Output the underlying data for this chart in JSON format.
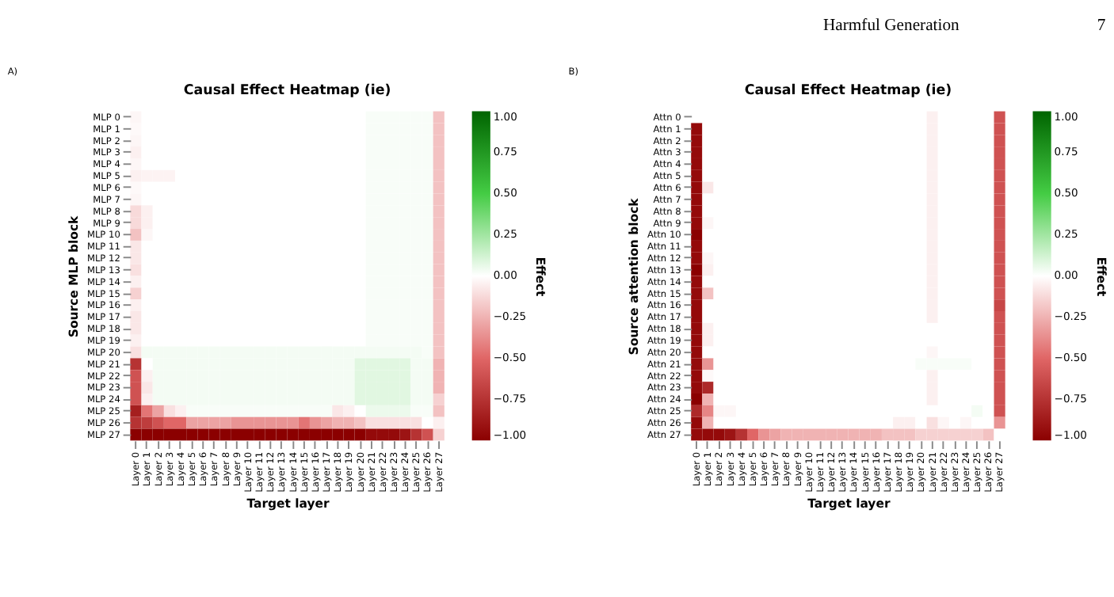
{
  "chart_data": [
    {
      "type": "heatmap",
      "title": "Causal Effect Heatmap (ie)",
      "xlabel": "Target layer",
      "ylabel": "Source MLP block",
      "clabel": "Effect",
      "annotations": [
        "A)"
      ],
      "cticks": [
        {
          "value": -1,
          "label": "−1.00"
        },
        {
          "value": -0.75,
          "label": "−0.75"
        },
        {
          "value": -0.5,
          "label": "−0.50"
        },
        {
          "value": -0.25,
          "label": "−0.25"
        },
        {
          "value": 0,
          "label": "0.00"
        },
        {
          "value": 0.25,
          "label": "0.25"
        },
        {
          "value": 0.5,
          "label": "0.50"
        },
        {
          "value": 0.75,
          "label": "0.75"
        },
        {
          "value": 1,
          "label": "1.00"
        }
      ],
      "categories": [
        "Layer 0",
        "Layer 1",
        "Layer 2",
        "Layer 3",
        "Layer 4",
        "Layer 5",
        "Layer 6",
        "Layer 7",
        "Layer 8",
        "Layer 9",
        "Layer 10",
        "Layer 11",
        "Layer 12",
        "Layer 13",
        "Layer 14",
        "Layer 15",
        "Layer 16",
        "Layer 17",
        "Layer 18",
        "Layer 19",
        "Layer 20",
        "Layer 21",
        "Layer 22",
        "Layer 23",
        "Layer 24",
        "Layer 25",
        "Layer 26",
        "Layer 27"
      ],
      "y_categories": [
        "MLP 0",
        "MLP 1",
        "MLP 2",
        "MLP 3",
        "MLP 4",
        "MLP 5",
        "MLP 6",
        "MLP 7",
        "MLP 8",
        "MLP 9",
        "MLP 10",
        "MLP 11",
        "MLP 12",
        "MLP 13",
        "MLP 14",
        "MLP 15",
        "MLP 16",
        "MLP 17",
        "MLP 18",
        "MLP 19",
        "MLP 20",
        "MLP 21",
        "MLP 22",
        "MLP 23",
        "MLP 24",
        "MLP 25",
        "MLP 26",
        "MLP 27"
      ],
      "clim": [
        -1,
        1
      ],
      "cells": [
        [
          -0.03,
          0,
          0,
          0,
          0,
          0,
          0,
          0,
          0,
          0,
          0,
          0,
          0,
          0,
          0,
          0,
          0,
          0,
          0,
          0,
          0,
          0.02,
          0.02,
          0.02,
          0.02,
          0.02,
          0.02,
          -0.2
        ],
        [
          -0.02,
          0,
          0,
          0,
          0,
          0,
          0,
          0,
          0,
          0,
          0,
          0,
          0,
          0,
          0,
          0,
          0,
          0,
          0,
          0,
          0,
          0.02,
          0.02,
          0.02,
          0.02,
          0.02,
          0.02,
          -0.2
        ],
        [
          -0.03,
          0,
          0,
          0,
          0,
          0,
          0,
          0,
          0,
          0,
          0,
          0,
          0,
          0,
          0,
          0,
          0,
          0,
          0,
          0,
          0,
          0.02,
          0.02,
          0.02,
          0.02,
          0.02,
          0.02,
          -0.2
        ],
        [
          -0.05,
          0,
          0,
          0,
          0,
          0,
          0,
          0,
          0,
          0,
          0,
          0,
          0,
          0,
          0,
          0,
          0,
          0,
          0,
          0,
          0,
          0.02,
          0.02,
          0.02,
          0.02,
          0.02,
          0.02,
          -0.2
        ],
        [
          -0.03,
          0,
          0,
          0,
          0,
          0,
          0,
          0,
          0,
          0,
          0,
          0,
          0,
          0,
          0,
          0,
          0,
          0,
          0,
          0,
          0,
          0.02,
          0.02,
          0.02,
          0.02,
          0.02,
          0.02,
          -0.2
        ],
        [
          -0.05,
          -0.04,
          -0.04,
          -0.04,
          0,
          0,
          0,
          0,
          0,
          0,
          0,
          0,
          0,
          0,
          0,
          0,
          0,
          0,
          0,
          0,
          0,
          0.02,
          0.02,
          0.02,
          0.02,
          0.02,
          0.02,
          -0.2
        ],
        [
          -0.02,
          0,
          0,
          0,
          0,
          0,
          0,
          0,
          0,
          0,
          0,
          0,
          0,
          0,
          0,
          0,
          0,
          0,
          0,
          0,
          0,
          0.02,
          0.02,
          0.02,
          0.02,
          0.02,
          0.02,
          -0.2
        ],
        [
          -0.03,
          0,
          0,
          0,
          0,
          0,
          0,
          0,
          0,
          0,
          0,
          0,
          0,
          0,
          0,
          0,
          0,
          0,
          0,
          0,
          0,
          0.02,
          0.02,
          0.02,
          0.02,
          0.02,
          0.02,
          -0.2
        ],
        [
          -0.12,
          -0.05,
          0,
          0,
          0,
          0,
          0,
          0,
          0,
          0,
          0,
          0,
          0,
          0,
          0,
          0,
          0,
          0,
          0,
          0,
          0,
          0.02,
          0.02,
          0.02,
          0.02,
          0.02,
          0.02,
          -0.2
        ],
        [
          -0.12,
          -0.05,
          0,
          0,
          0,
          0,
          0,
          0,
          0,
          0,
          0,
          0,
          0,
          0,
          0,
          0,
          0,
          0,
          0,
          0,
          0,
          0.02,
          0.02,
          0.02,
          0.02,
          0.02,
          0.02,
          -0.2
        ],
        [
          -0.2,
          -0.03,
          0,
          0,
          0,
          0,
          0,
          0,
          0,
          0,
          0,
          0,
          0,
          0,
          0,
          0,
          0,
          0,
          0,
          0,
          0,
          0.02,
          0.02,
          0.02,
          0.02,
          0.02,
          0.02,
          -0.2
        ],
        [
          -0.08,
          0,
          0,
          0,
          0,
          0,
          0,
          0,
          0,
          0,
          0,
          0,
          0,
          0,
          0,
          0,
          0,
          0,
          0,
          0,
          0,
          0.02,
          0.02,
          0.02,
          0.02,
          0.02,
          0.02,
          -0.2
        ],
        [
          -0.08,
          0,
          0,
          0,
          0,
          0,
          0,
          0,
          0,
          0,
          0,
          0,
          0,
          0,
          0,
          0,
          0,
          0,
          0,
          0,
          0,
          0.02,
          0.02,
          0.02,
          0.02,
          0.02,
          0.02,
          -0.2
        ],
        [
          -0.1,
          0,
          0,
          0,
          0,
          0,
          0,
          0,
          0,
          0,
          0,
          0,
          0,
          0,
          0,
          0,
          0,
          0,
          0,
          0,
          0,
          0.02,
          0.02,
          0.02,
          0.02,
          0.02,
          0.02,
          -0.2
        ],
        [
          -0.05,
          0,
          0,
          0,
          0,
          0,
          0,
          0,
          0,
          0,
          0,
          0,
          0,
          0,
          0,
          0,
          0,
          0,
          0,
          0,
          0,
          0.02,
          0.02,
          0.02,
          0.02,
          0.02,
          0.02,
          -0.2
        ],
        [
          -0.15,
          0,
          0,
          0,
          0,
          0,
          0,
          0,
          0,
          0,
          0,
          0,
          0,
          0,
          0,
          0,
          0,
          0,
          0,
          0,
          0,
          0.02,
          0.02,
          0.02,
          0.02,
          0.02,
          0.02,
          -0.2
        ],
        [
          -0.05,
          0,
          0,
          0,
          0,
          0,
          0,
          0,
          0,
          0,
          0,
          0,
          0,
          0,
          0,
          0,
          0,
          0,
          0,
          0,
          0,
          0.02,
          0.02,
          0.02,
          0.02,
          0.02,
          0.02,
          -0.2
        ],
        [
          -0.08,
          0,
          0,
          0,
          0,
          0,
          0,
          0,
          0,
          0,
          0,
          0,
          0,
          0,
          0,
          0,
          0,
          0,
          0,
          0,
          0,
          0.02,
          0.02,
          0.02,
          0.02,
          0.02,
          0.02,
          -0.2
        ],
        [
          -0.08,
          0,
          0,
          0,
          0,
          0,
          0,
          0,
          0,
          0,
          0,
          0,
          0,
          0,
          0,
          0,
          0,
          0,
          0,
          0,
          0,
          0.02,
          0.02,
          0.02,
          0.02,
          0.02,
          0.02,
          -0.2
        ],
        [
          -0.05,
          0,
          0,
          0,
          0,
          0,
          0,
          0,
          0,
          0,
          0,
          0,
          0,
          0,
          0,
          0,
          0,
          0,
          0,
          0,
          0,
          0.02,
          0.02,
          0.02,
          0.02,
          0.02,
          0.02,
          -0.2
        ],
        [
          -0.1,
          0.03,
          0.03,
          0.03,
          0.03,
          0.03,
          0.03,
          0.03,
          0.03,
          0.03,
          0.03,
          0.03,
          0.03,
          0.03,
          0.03,
          0.03,
          0.03,
          0.03,
          0.03,
          0.03,
          0.03,
          0.03,
          0.03,
          0.03,
          0.03,
          0.03,
          0.02,
          -0.2
        ],
        [
          -0.75,
          0,
          0.03,
          0.03,
          0.03,
          0.03,
          0.03,
          0.03,
          0.03,
          0.03,
          0.03,
          0.03,
          0.03,
          0.03,
          0.03,
          0.03,
          0.03,
          0.03,
          0.03,
          0.03,
          0.08,
          0.08,
          0.08,
          0.08,
          0.08,
          0.03,
          0.03,
          -0.25
        ],
        [
          -0.6,
          -0.05,
          0.03,
          0.03,
          0.03,
          0.03,
          0.03,
          0.03,
          0.03,
          0.03,
          0.03,
          0.03,
          0.03,
          0.03,
          0.03,
          0.03,
          0.03,
          0.03,
          0.03,
          0.03,
          0.08,
          0.08,
          0.08,
          0.08,
          0.08,
          0.03,
          0.03,
          -0.25
        ],
        [
          -0.6,
          -0.08,
          0.03,
          0.03,
          0.03,
          0.03,
          0.03,
          0.03,
          0.03,
          0.03,
          0.03,
          0.03,
          0.03,
          0.03,
          0.03,
          0.03,
          0.03,
          0.03,
          0.03,
          0.03,
          0.08,
          0.08,
          0.08,
          0.08,
          0.08,
          0.03,
          0.03,
          -0.25
        ],
        [
          -0.6,
          -0.05,
          0.03,
          0.03,
          0.03,
          0.03,
          0.03,
          0.03,
          0.03,
          0.03,
          0.03,
          0.03,
          0.03,
          0.03,
          0.03,
          0.03,
          0.03,
          0.03,
          0.03,
          0.03,
          0.08,
          0.08,
          0.08,
          0.08,
          0.08,
          0.03,
          0.03,
          -0.15
        ],
        [
          -0.85,
          -0.45,
          -0.3,
          -0.1,
          -0.05,
          0.02,
          0.02,
          0.02,
          0.02,
          0.02,
          0.02,
          0.02,
          0.02,
          0.02,
          0.02,
          0.02,
          0.02,
          0.02,
          -0.08,
          -0.05,
          0,
          0.05,
          0.05,
          0.05,
          0.05,
          0.02,
          0.02,
          -0.2
        ],
        [
          -0.75,
          -0.7,
          -0.6,
          -0.5,
          -0.5,
          -0.3,
          -0.3,
          -0.3,
          -0.3,
          -0.35,
          -0.35,
          -0.35,
          -0.35,
          -0.35,
          -0.35,
          -0.45,
          -0.35,
          -0.3,
          -0.25,
          -0.25,
          -0.2,
          -0.1,
          -0.1,
          -0.1,
          -0.1,
          -0.1,
          0,
          -0.05
        ],
        [
          -1,
          -1,
          -1,
          -1,
          -1,
          -1,
          -1,
          -1,
          -1,
          -1,
          -1,
          -1,
          -1,
          -1,
          -1,
          -1,
          -1,
          -1,
          -1,
          -1,
          -1,
          -0.95,
          -0.95,
          -0.95,
          -0.9,
          -0.75,
          -0.6,
          -0.15
        ]
      ]
    },
    {
      "type": "heatmap",
      "title": "Causal Effect Heatmap (ie)",
      "xlabel": "Target layer",
      "ylabel": "Source attention block",
      "clabel": "Effect",
      "annotations": [
        "B)",
        "Harmful Generation",
        "7"
      ],
      "cticks": [
        {
          "value": -1,
          "label": "−1.00"
        },
        {
          "value": -0.75,
          "label": "−0.75"
        },
        {
          "value": -0.5,
          "label": "−0.50"
        },
        {
          "value": -0.25,
          "label": "−0.25"
        },
        {
          "value": 0,
          "label": "0.00"
        },
        {
          "value": 0.25,
          "label": "0.25"
        },
        {
          "value": 0.5,
          "label": "0.50"
        },
        {
          "value": 0.75,
          "label": "0.75"
        },
        {
          "value": 1,
          "label": "1.00"
        }
      ],
      "categories": [
        "Layer 0",
        "Layer 1",
        "Layer 2",
        "Layer 3",
        "Layer 4",
        "Layer 5",
        "Layer 6",
        "Layer 7",
        "Layer 8",
        "Layer 9",
        "Layer 10",
        "Layer 11",
        "Layer 12",
        "Layer 13",
        "Layer 14",
        "Layer 15",
        "Layer 16",
        "Layer 17",
        "Layer 18",
        "Layer 19",
        "Layer 20",
        "Layer 21",
        "Layer 22",
        "Layer 23",
        "Layer 24",
        "Layer 25",
        "Layer 26",
        "Layer 27"
      ],
      "y_categories": [
        "Attn 0",
        "Attn 1",
        "Attn 2",
        "Attn 3",
        "Attn 4",
        "Attn 5",
        "Attn 6",
        "Attn 7",
        "Attn 8",
        "Attn 9",
        "Attn 10",
        "Attn 11",
        "Attn 12",
        "Attn 13",
        "Attn 14",
        "Attn 15",
        "Attn 16",
        "Attn 17",
        "Attn 18",
        "Attn 19",
        "Attn 20",
        "Attn 21",
        "Attn 22",
        "Attn 23",
        "Attn 24",
        "Attn 25",
        "Attn 26",
        "Attn 27"
      ],
      "clim": [
        -1,
        1
      ],
      "cells": [
        [
          0,
          0,
          0,
          0,
          0,
          0,
          0,
          0,
          0,
          0,
          0,
          0,
          0,
          0,
          0,
          0,
          0,
          0,
          0,
          0,
          0,
          -0.05,
          0,
          0,
          0,
          0,
          0,
          -0.6
        ],
        [
          -0.95,
          0,
          0,
          0,
          0,
          0,
          0,
          0,
          0,
          0,
          0,
          0,
          0,
          0,
          0,
          0,
          0,
          0,
          0,
          0,
          0,
          -0.05,
          0,
          0,
          0,
          0,
          0,
          -0.6
        ],
        [
          -0.95,
          0,
          0,
          0,
          0,
          0,
          0,
          0,
          0,
          0,
          0,
          0,
          0,
          0,
          0,
          0,
          0,
          0,
          0,
          0,
          0,
          -0.05,
          0,
          0,
          0,
          0,
          0,
          -0.6
        ],
        [
          -0.95,
          0,
          0,
          0,
          0,
          0,
          0,
          0,
          0,
          0,
          0,
          0,
          0,
          0,
          0,
          0,
          0,
          0,
          0,
          0,
          0,
          -0.05,
          0,
          0,
          0,
          0,
          0,
          -0.6
        ],
        [
          -0.95,
          0,
          0,
          0,
          0,
          0,
          0,
          0,
          0,
          0,
          0,
          0,
          0,
          0,
          0,
          0,
          0,
          0,
          0,
          0,
          0,
          -0.05,
          0,
          0,
          0,
          0,
          0,
          -0.6
        ],
        [
          -0.95,
          0,
          0,
          0,
          0,
          0,
          0,
          0,
          0,
          0,
          0,
          0,
          0,
          0,
          0,
          0,
          0,
          0,
          0,
          0,
          0,
          -0.05,
          0,
          0,
          0,
          0,
          0,
          -0.6
        ],
        [
          -0.95,
          -0.08,
          0,
          0,
          0,
          0,
          0,
          0,
          0,
          0,
          0,
          0,
          0,
          0,
          0,
          0,
          0,
          0,
          0,
          0,
          0,
          -0.05,
          0,
          0,
          0,
          0,
          0,
          -0.6
        ],
        [
          -0.95,
          0,
          0,
          0,
          0,
          0,
          0,
          0,
          0,
          0,
          0,
          0,
          0,
          0,
          0,
          0,
          0,
          0,
          0,
          0,
          0,
          -0.05,
          0,
          0,
          0,
          0,
          0,
          -0.6
        ],
        [
          -0.95,
          0,
          0,
          0,
          0,
          0,
          0,
          0,
          0,
          0,
          0,
          0,
          0,
          0,
          0,
          0,
          0,
          0,
          0,
          0,
          0,
          -0.05,
          0,
          0,
          0,
          0,
          0,
          -0.6
        ],
        [
          -0.95,
          -0.03,
          0,
          0,
          0,
          0,
          0,
          0,
          0,
          0,
          0,
          0,
          0,
          0,
          0,
          0,
          0,
          0,
          0,
          0,
          0,
          -0.05,
          0,
          0,
          0,
          0,
          0,
          -0.6
        ],
        [
          -1,
          0,
          0,
          0,
          0,
          0,
          0,
          0,
          0,
          0,
          0,
          0,
          0,
          0,
          0,
          0,
          0,
          0,
          0,
          0,
          0,
          -0.05,
          0,
          0,
          0,
          0,
          0,
          -0.6
        ],
        [
          -0.95,
          0,
          0,
          0,
          0,
          0,
          0,
          0,
          0,
          0,
          0,
          0,
          0,
          0,
          0,
          0,
          0,
          0,
          0,
          0,
          0,
          -0.05,
          0,
          0,
          0,
          0,
          0,
          -0.6
        ],
        [
          -0.95,
          -0.03,
          0,
          0,
          0,
          0,
          0,
          0,
          0,
          0,
          0,
          0,
          0,
          0,
          0,
          0,
          0,
          0,
          0,
          0,
          0,
          -0.05,
          0,
          0,
          0,
          0,
          0,
          -0.6
        ],
        [
          -1,
          -0.05,
          0,
          0,
          0,
          0,
          0,
          0,
          0,
          0,
          0,
          0,
          0,
          0,
          0,
          0,
          0,
          0,
          0,
          0,
          0,
          -0.05,
          0,
          0,
          0,
          0,
          0,
          -0.6
        ],
        [
          -0.95,
          0,
          0,
          0,
          0,
          0,
          0,
          0,
          0,
          0,
          0,
          0,
          0,
          0,
          0,
          0,
          0,
          0,
          0,
          0,
          0,
          -0.05,
          0,
          0,
          0,
          0,
          0,
          -0.6
        ],
        [
          -0.95,
          -0.2,
          0,
          0,
          0,
          0,
          0,
          0,
          0,
          0,
          0,
          0,
          0,
          0,
          0,
          0,
          0,
          0,
          0,
          0,
          0,
          -0.05,
          0,
          0,
          0,
          0,
          0,
          -0.6
        ],
        [
          -0.95,
          0,
          0,
          0,
          0,
          0,
          0,
          0,
          0,
          0,
          0,
          0,
          0,
          0,
          0,
          0,
          0,
          0,
          0,
          0,
          0,
          -0.05,
          0,
          0,
          0,
          0,
          0,
          -0.65
        ],
        [
          -0.95,
          0,
          0,
          0,
          0,
          0,
          0,
          0,
          0,
          0,
          0,
          0,
          0,
          0,
          0,
          0,
          0,
          0,
          0,
          0,
          0,
          -0.05,
          0,
          0,
          0,
          0,
          0,
          -0.6
        ],
        [
          -0.95,
          -0.05,
          0,
          0,
          0,
          0,
          0,
          0,
          0,
          0,
          0,
          0,
          0,
          0,
          0,
          0,
          0,
          0,
          0,
          0,
          0,
          0,
          0,
          0,
          0,
          0,
          0,
          -0.6
        ],
        [
          -0.95,
          -0.05,
          0,
          0,
          0,
          0,
          0,
          0,
          0,
          0,
          0,
          0,
          0,
          0,
          0,
          0,
          0,
          0,
          0,
          0,
          0,
          0,
          0,
          0,
          0,
          0,
          0,
          -0.6
        ],
        [
          -0.95,
          0,
          0,
          0,
          0,
          0,
          0,
          0,
          0,
          0,
          0,
          0,
          0,
          0,
          0,
          0,
          0,
          0,
          0,
          0,
          0,
          -0.03,
          0,
          0,
          0,
          0,
          0,
          -0.6
        ],
        [
          -0.95,
          -0.35,
          0,
          0,
          0,
          0,
          0,
          0,
          0,
          0,
          0,
          0,
          0,
          0,
          0,
          0,
          0,
          0,
          0,
          0,
          0.02,
          0.02,
          0.02,
          0.02,
          0.02,
          0,
          0,
          -0.6
        ],
        [
          -0.95,
          -0.02,
          0,
          0,
          0,
          0,
          0,
          0,
          0,
          0,
          0,
          0,
          0,
          0,
          0,
          0,
          0,
          0,
          0,
          0,
          0,
          -0.05,
          0,
          0,
          0,
          0,
          0,
          -0.6
        ],
        [
          -0.95,
          -0.8,
          0,
          0,
          0,
          0,
          0,
          0,
          0,
          0,
          0,
          0,
          0,
          0,
          0,
          0,
          0,
          0,
          0,
          0,
          0,
          -0.05,
          0,
          0,
          0,
          0,
          0,
          -0.6
        ],
        [
          -1,
          -0.25,
          0,
          0,
          0,
          0,
          0,
          0,
          0,
          0,
          0,
          0,
          0,
          0,
          0,
          0,
          0,
          0,
          0,
          0,
          0,
          -0.05,
          0,
          0,
          0,
          0,
          0,
          -0.6
        ],
        [
          -0.8,
          -0.4,
          -0.03,
          -0.03,
          0,
          0,
          0,
          0,
          0,
          0,
          0,
          0,
          0,
          0,
          0,
          0,
          0,
          0,
          0,
          0,
          0,
          0,
          0,
          0,
          0,
          0.03,
          0,
          -0.6
        ],
        [
          -0.95,
          -0.25,
          0,
          0,
          0,
          0,
          0,
          0,
          0,
          0,
          0,
          0,
          0,
          0,
          0,
          0,
          0,
          0,
          -0.05,
          -0.05,
          0,
          -0.1,
          -0.03,
          0,
          -0.03,
          0,
          0,
          -0.35
        ],
        [
          -0.95,
          -0.95,
          -0.95,
          -0.9,
          -0.75,
          -0.5,
          -0.35,
          -0.3,
          -0.25,
          -0.25,
          -0.25,
          -0.25,
          -0.25,
          -0.25,
          -0.25,
          -0.25,
          -0.25,
          -0.2,
          -0.2,
          -0.2,
          -0.15,
          -0.15,
          -0.15,
          -0.15,
          -0.15,
          -0.15,
          -0.2,
          0
        ]
      ]
    }
  ]
}
